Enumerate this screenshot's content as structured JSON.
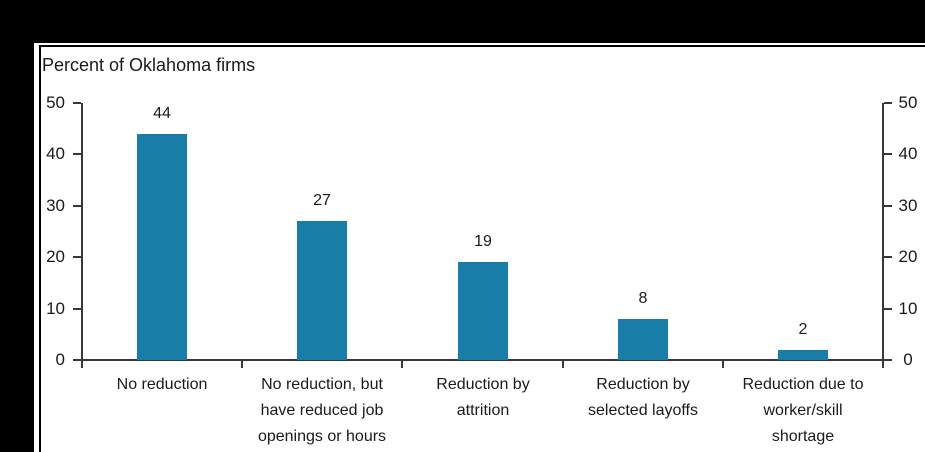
{
  "chart_data": {
    "type": "bar",
    "title": "Percent of Oklahoma firms",
    "categories": [
      "No reduction",
      "No reduction, but\nhave reduced job\nopenings or hours",
      "Reduction by\nattrition",
      "Reduction by\nselected layoffs",
      "Reduction due to\nworker/skill\nshortage"
    ],
    "values": [
      44,
      27,
      19,
      8,
      2
    ],
    "value_labels": [
      "44",
      "27",
      "19",
      "8",
      "2"
    ],
    "xlabel": "",
    "ylabel": "",
    "ylim": [
      0,
      50
    ],
    "yticks": [
      0,
      10,
      20,
      30,
      40,
      50
    ],
    "left_axis_tick_labels": [
      "0",
      "10",
      "20",
      "30",
      "40",
      "50"
    ],
    "right_axis_tick_labels": [
      "0",
      "10",
      "20",
      "30",
      "40",
      "50"
    ],
    "grid": false,
    "legend_position": "none",
    "bar_color": "#187EA8",
    "axis_color": "#383838",
    "text_color": "#1a1a1a",
    "frame_color": "#000000"
  }
}
